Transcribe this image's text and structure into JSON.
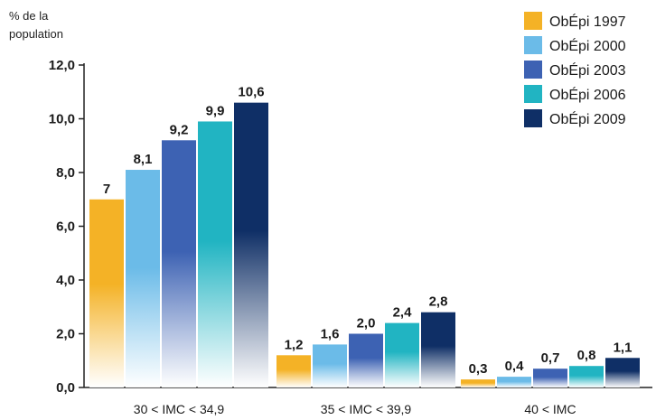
{
  "chart_data": {
    "type": "bar",
    "ylabel_line1": "% de la",
    "ylabel_line2": "population",
    "ylim": [
      0,
      12
    ],
    "yticks": [
      "0,0",
      "2,0",
      "4,0",
      "6,0",
      "8,0",
      "10,0",
      "12,0"
    ],
    "ytick_values": [
      0,
      2,
      4,
      6,
      8,
      10,
      12
    ],
    "categories": [
      "30 < IMC < 34,9",
      "35 < IMC < 39,9",
      "40 < IMC"
    ],
    "legend_position": "top-right",
    "grid": false,
    "series": [
      {
        "name": "ObÉpi 1997",
        "color": "#f4b226",
        "values": [
          7,
          1.2,
          0.3
        ],
        "labels": [
          "7",
          "1,2",
          "0,3"
        ]
      },
      {
        "name": "ObÉpi 2000",
        "color": "#6bbbe8",
        "values": [
          8.1,
          1.6,
          0.4
        ],
        "labels": [
          "8,1",
          "1,6",
          "0,4"
        ]
      },
      {
        "name": "ObÉpi 2003",
        "color": "#3d62b3",
        "values": [
          9.2,
          2.0,
          0.7
        ],
        "labels": [
          "9,2",
          "2,0",
          "0,7"
        ]
      },
      {
        "name": "ObÉpi 2006",
        "color": "#21b4c2",
        "values": [
          9.9,
          2.4,
          0.8
        ],
        "labels": [
          "9,9",
          "2,4",
          "0,8"
        ]
      },
      {
        "name": "ObÉpi 2009",
        "color": "#0f2f66",
        "values": [
          10.6,
          2.8,
          1.1
        ],
        "labels": [
          "10,6",
          "2,8",
          "1,1"
        ]
      }
    ]
  }
}
